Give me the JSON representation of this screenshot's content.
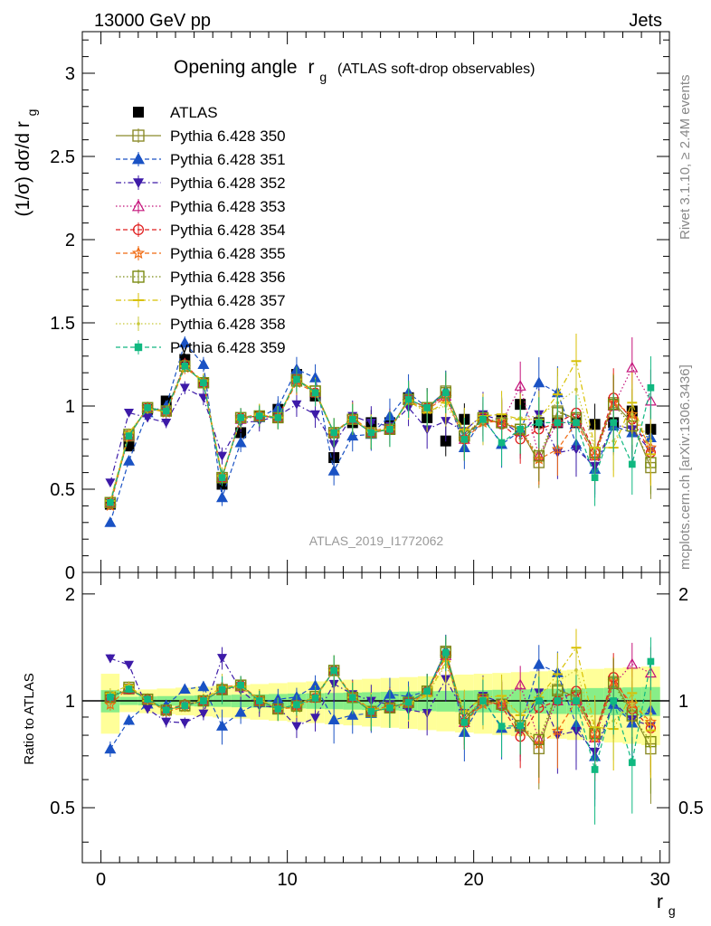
{
  "header": {
    "left": "13000 GeV pp",
    "right": "Jets"
  },
  "side_labels": {
    "rivet": "Rivet 3.1.10, ≥ 2.4M events",
    "mcplots": "mcplots.cern.ch [arXiv:1306.3436]"
  },
  "chart_data": {
    "type": "scatter",
    "title": "Opening angle",
    "title_symbol": "r",
    "title_subscript": "g",
    "title_note": "(ATLAS soft-drop observables)",
    "analysis_tag": "ATLAS_2019_I1772062",
    "ylabel": "(1/σ) dσ/d r",
    "ylabel_subscript": "g",
    "xlabel": "r",
    "xlabel_subscript": "g",
    "ratio_ylabel": "Ratio to ATLAS",
    "xlim": [
      -1,
      30.5
    ],
    "ylim": [
      0,
      3.25
    ],
    "ratio_ylim": [
      0.35,
      2.3
    ],
    "x_ticks": [
      "0",
      "10",
      "20",
      "30"
    ],
    "y_ticks": [
      "0",
      "0.5",
      "1",
      "1.5",
      "2",
      "2.5",
      "3"
    ],
    "ratio_y_ticks": [
      "0.5",
      "1",
      "2"
    ],
    "grid": false,
    "legend_position": "top-left",
    "x": [
      0.5,
      1.5,
      2.5,
      3.5,
      4.5,
      5.5,
      6.5,
      7.5,
      8.5,
      9.5,
      10.5,
      11.5,
      12.5,
      13.5,
      14.5,
      15.5,
      16.5,
      17.5,
      18.5,
      19.5,
      20.5,
      21.5,
      22.5,
      23.5,
      24.5,
      25.5,
      26.5,
      27.5,
      28.5,
      29.5
    ],
    "series": [
      {
        "name": "ATLAS",
        "color": "#000000",
        "marker": "square-filled",
        "dash": "none",
        "values": [
          0.41,
          0.76,
          0.98,
          1.03,
          1.28,
          1.14,
          0.53,
          0.84,
          0.94,
          0.98,
          1.19,
          1.06,
          0.69,
          0.9,
          0.9,
          0.9,
          1.05,
          0.93,
          0.79,
          0.92,
          0.92,
          0.92,
          1.01,
          0.9,
          0.9,
          0.9,
          0.89,
          0.9,
          0.97,
          0.86
        ]
      },
      {
        "name": "Pythia 6.428 350",
        "color": "#8b8b2a",
        "marker": "square-open",
        "dash": "solid",
        "values": [
          0.42,
          0.82,
          0.99,
          0.97,
          1.24,
          1.14,
          0.57,
          0.93,
          0.94,
          0.93,
          1.16,
          1.09,
          0.84,
          0.92,
          0.84,
          0.86,
          1.04,
          0.99,
          1.09,
          0.82,
          0.92,
          0.9,
          0.86,
          0.66,
          0.97,
          0.92,
          0.72,
          1.02,
          0.9,
          0.63
        ]
      },
      {
        "name": "Pythia 6.428 351",
        "color": "#1a52c4",
        "marker": "triangle-up-filled",
        "dash": "dashed",
        "values": [
          0.3,
          0.67,
          0.96,
          1.0,
          1.38,
          1.25,
          0.45,
          0.78,
          0.93,
          0.99,
          1.22,
          1.17,
          0.61,
          0.82,
          0.83,
          0.94,
          1.08,
          0.99,
          1.09,
          0.75,
          0.93,
          0.77,
          0.85,
          1.14,
          1.08,
          0.77,
          0.62,
          0.88,
          0.84,
          0.81
        ]
      },
      {
        "name": "Pythia 6.428 352",
        "color": "#3d1aa8",
        "marker": "triangle-down-filled",
        "dash": "dashdot",
        "values": [
          0.54,
          0.96,
          0.93,
          0.9,
          1.11,
          1.05,
          0.7,
          0.9,
          0.91,
          0.94,
          1.01,
          0.95,
          0.77,
          0.94,
          0.9,
          0.88,
          0.99,
          0.86,
          0.91,
          0.85,
          0.95,
          0.91,
          0.83,
          0.95,
          0.72,
          0.74,
          0.64,
          0.89,
          0.86,
          0.73
        ]
      },
      {
        "name": "Pythia 6.428 353",
        "color": "#c4127a",
        "marker": "triangle-up-open",
        "dash": "dotted",
        "values": [
          0.42,
          0.82,
          0.99,
          0.97,
          1.25,
          1.14,
          0.57,
          0.92,
          0.94,
          0.93,
          1.16,
          1.08,
          0.84,
          0.92,
          0.84,
          0.86,
          1.04,
          0.99,
          1.06,
          0.8,
          0.92,
          0.9,
          1.12,
          0.7,
          0.9,
          0.9,
          0.7,
          1.0,
          1.23,
          1.03
        ]
      },
      {
        "name": "Pythia 6.428 354",
        "color": "#e01e1e",
        "marker": "circle-open",
        "dash": "dashed",
        "values": [
          0.42,
          0.82,
          0.99,
          0.97,
          1.25,
          1.14,
          0.57,
          0.93,
          0.94,
          0.93,
          1.16,
          1.08,
          0.84,
          0.92,
          0.84,
          0.86,
          1.04,
          0.99,
          1.07,
          0.8,
          0.93,
          0.89,
          0.8,
          0.86,
          0.9,
          0.96,
          0.72,
          1.05,
          0.92,
          0.72
        ]
      },
      {
        "name": "Pythia 6.428 355",
        "color": "#f06a10",
        "marker": "star-open",
        "dash": "dashed",
        "values": [
          0.4,
          0.83,
          0.99,
          0.96,
          1.23,
          1.15,
          0.58,
          0.93,
          0.95,
          0.93,
          1.14,
          1.08,
          0.84,
          0.93,
          0.85,
          0.87,
          1.03,
          0.98,
          1.05,
          0.8,
          0.9,
          0.91,
          0.86,
          0.68,
          0.74,
          0.9,
          0.7,
          1.02,
          0.95,
          0.75
        ]
      },
      {
        "name": "Pythia 6.428 356",
        "color": "#7a8a10",
        "marker": "square-open",
        "dash": "dotted",
        "values": [
          0.42,
          0.83,
          0.99,
          0.97,
          1.24,
          1.14,
          0.57,
          0.93,
          0.94,
          0.93,
          1.15,
          1.09,
          0.84,
          0.92,
          0.84,
          0.86,
          1.04,
          0.99,
          1.08,
          0.82,
          0.93,
          0.9,
          0.86,
          0.7,
          0.96,
          0.93,
          0.72,
          1.01,
          0.88,
          0.66
        ]
      },
      {
        "name": "Pythia 6.428 357",
        "color": "#d8c000",
        "marker": "dash",
        "dash": "dashdot",
        "values": [
          0.43,
          0.84,
          0.98,
          0.97,
          1.24,
          1.15,
          0.58,
          0.92,
          0.95,
          0.93,
          1.16,
          1.09,
          0.84,
          0.92,
          0.85,
          0.86,
          1.03,
          0.96,
          1.02,
          0.86,
          0.94,
          0.95,
          0.92,
          0.92,
          1.07,
          1.27,
          0.75,
          0.75,
          1.02,
          0.71
        ]
      },
      {
        "name": "Pythia 6.428 358",
        "color": "#c8c838",
        "marker": "dot",
        "dash": "dotted",
        "values": [
          0.43,
          0.84,
          0.98,
          0.97,
          1.24,
          1.14,
          0.58,
          0.92,
          0.95,
          0.93,
          1.16,
          1.08,
          0.84,
          0.92,
          0.85,
          0.86,
          1.03,
          0.97,
          1.0,
          0.85,
          0.9,
          0.92,
          0.93,
          0.94,
          1.02,
          1.1,
          0.74,
          0.79,
          0.95,
          0.79
        ]
      },
      {
        "name": "Pythia 6.428 359",
        "color": "#10b880",
        "marker": "square-small-filled",
        "dash": "dashed",
        "values": [
          0.42,
          0.82,
          0.99,
          0.97,
          1.24,
          1.14,
          0.57,
          0.93,
          0.94,
          0.93,
          1.16,
          1.08,
          0.84,
          0.92,
          0.84,
          0.86,
          1.04,
          0.99,
          1.08,
          0.8,
          0.92,
          0.78,
          0.86,
          0.9,
          0.9,
          0.9,
          0.57,
          0.9,
          0.65,
          1.11
        ]
      }
    ]
  }
}
